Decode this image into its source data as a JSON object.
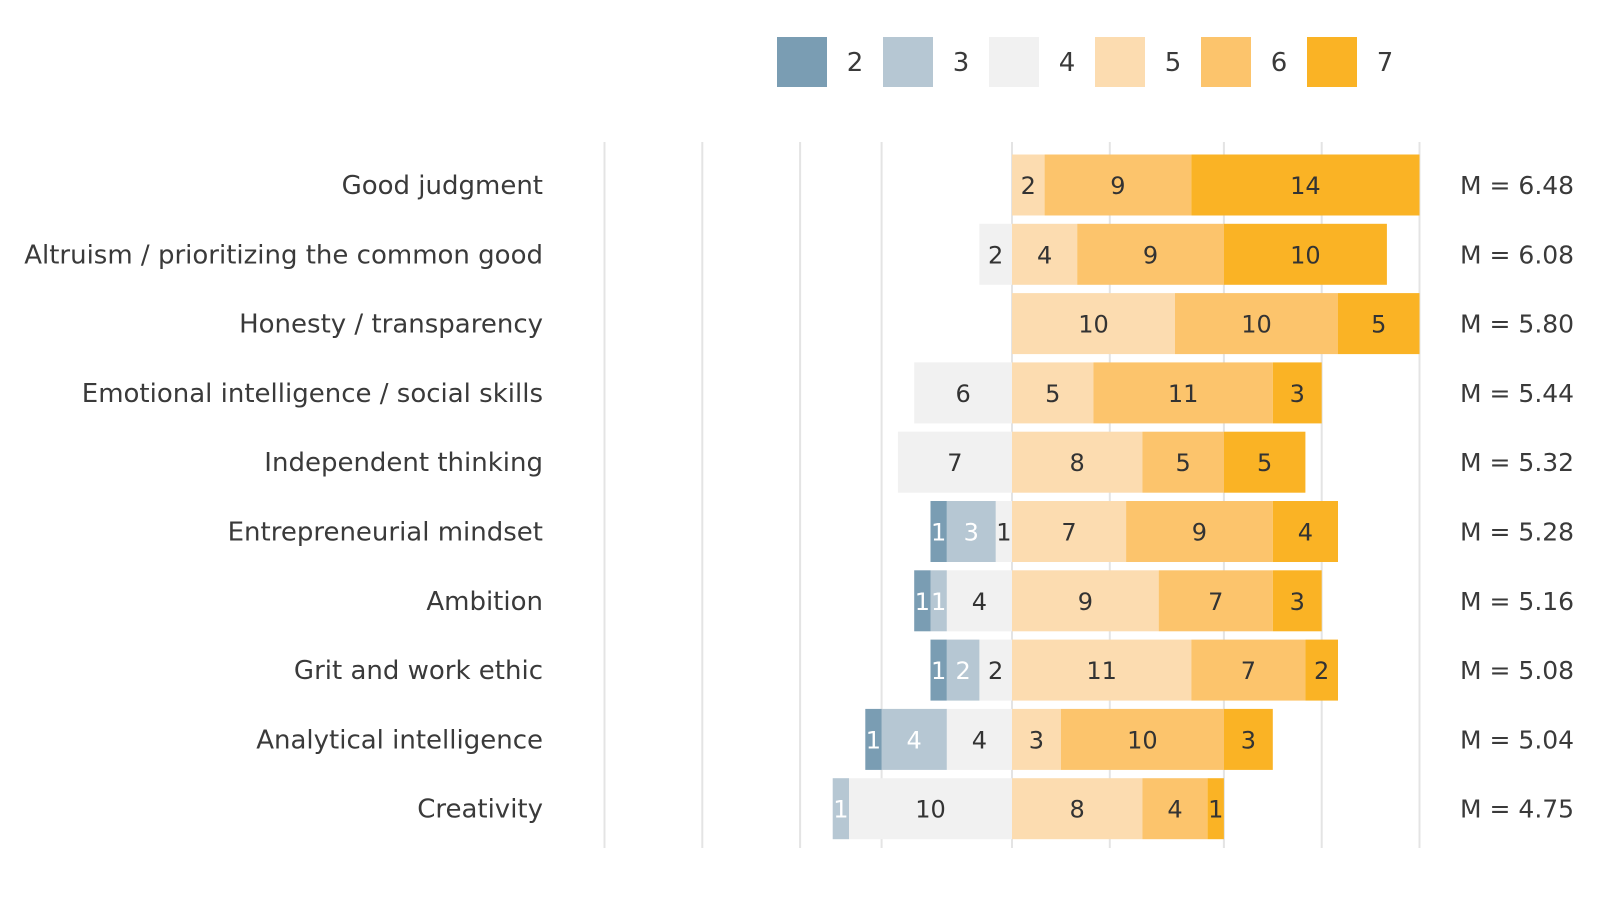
{
  "chart_data": {
    "type": "diverging-stacked-bar",
    "legend": {
      "position": "top",
      "entries": [
        {
          "label": "2",
          "color": "#7a9db3"
        },
        {
          "label": "3",
          "color": "#b6c7d3"
        },
        {
          "label": "4",
          "color": "#f1f1f1"
        },
        {
          "label": "5",
          "color": "#fcdcb0"
        },
        {
          "label": "6",
          "color": "#fcc46c"
        },
        {
          "label": "7",
          "color": "#fab325"
        }
      ]
    },
    "categories": [
      "Good judgment",
      "Altruism / prioritizing the common good",
      "Honesty / transparency",
      "Emotional intelligence / social skills",
      "Independent thinking",
      "Entrepreneurial mindset",
      "Ambition",
      "Grit and work ethic",
      "Analytical intelligence",
      "Creativity"
    ],
    "series": [
      {
        "name": "2",
        "values": [
          0,
          0,
          0,
          0,
          0,
          1,
          1,
          1,
          1,
          0
        ]
      },
      {
        "name": "3",
        "values": [
          0,
          0,
          0,
          0,
          0,
          3,
          1,
          2,
          4,
          1
        ]
      },
      {
        "name": "4",
        "values": [
          0,
          2,
          0,
          6,
          7,
          1,
          4,
          2,
          4,
          10
        ]
      },
      {
        "name": "5",
        "values": [
          2,
          4,
          10,
          5,
          8,
          7,
          9,
          11,
          3,
          8
        ]
      },
      {
        "name": "6",
        "values": [
          9,
          9,
          10,
          11,
          5,
          9,
          7,
          7,
          10,
          4
        ]
      },
      {
        "name": "7",
        "values": [
          14,
          10,
          5,
          3,
          5,
          4,
          3,
          2,
          3,
          1
        ]
      }
    ],
    "means": [
      "M = 6.48",
      "M = 6.08",
      "M = 5.80",
      "M = 5.44",
      "M = 5.32",
      "M = 5.28",
      "M = 5.16",
      "M = 5.08",
      "M = 5.04",
      "M = 4.75"
    ],
    "neutral_split": "4 extends left of zero, 5 and above extend right",
    "x_range": [
      -25,
      25
    ],
    "gridlines_at": [
      -25,
      -19,
      -13,
      -8,
      0,
      6,
      13,
      19,
      25
    ],
    "grid": true
  }
}
